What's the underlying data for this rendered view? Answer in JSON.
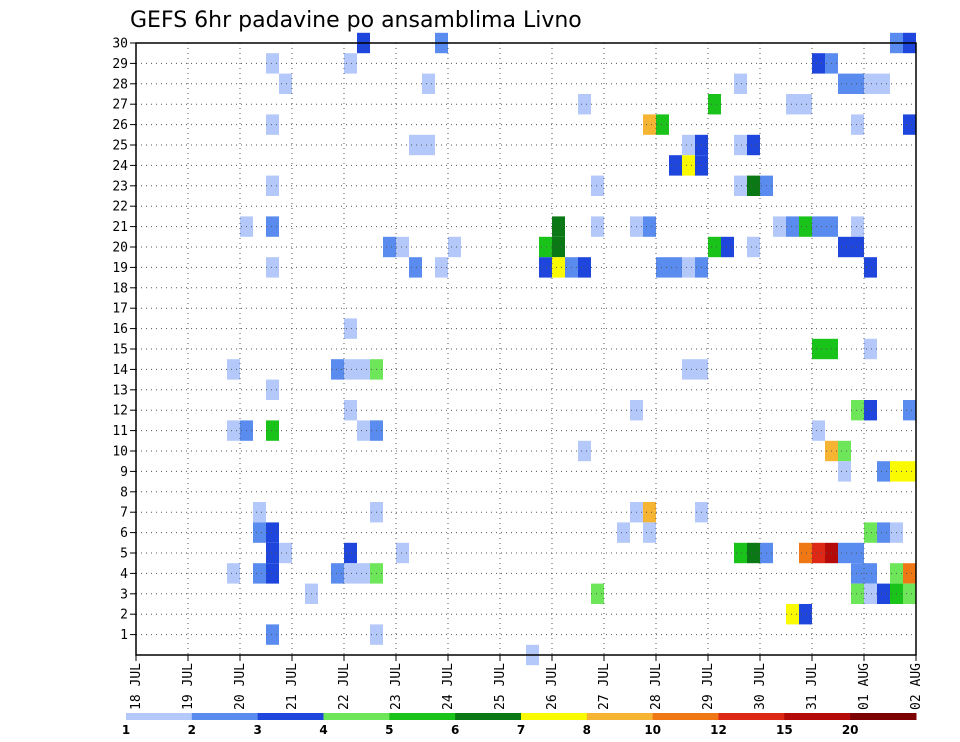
{
  "chart_data": {
    "type": "heatmap",
    "title": "GEFS 6hr padavine po ansamblima Livno",
    "xlabel": "",
    "ylabel": "",
    "x_tick_labels": [
      "18 JUL",
      "19 JUL",
      "20 JUL",
      "21 JUL",
      "22 JUL",
      "23 JUL",
      "24 JUL",
      "25 JUL",
      "26 JUL",
      "27 JUL",
      "28 JUL",
      "29 JUL",
      "30 JUL",
      "31 JUL",
      "01 AUG",
      "02 AUG"
    ],
    "x_unit": "6-hour step from 18 JUL 00Z (4 steps per day)",
    "xlim": [
      0,
      60
    ],
    "y_tick_labels": [
      1,
      2,
      3,
      4,
      5,
      6,
      7,
      8,
      9,
      10,
      11,
      12,
      13,
      14,
      15,
      16,
      17,
      18,
      19,
      20,
      21,
      22,
      23,
      24,
      25,
      26,
      27,
      28,
      29,
      30
    ],
    "ylim": [
      0,
      30
    ],
    "grid": true,
    "colorbar": {
      "labels": [
        "1",
        "2",
        "3",
        "4",
        "5",
        "6",
        "7",
        "8",
        "10",
        "12",
        "15",
        "20"
      ],
      "colors": [
        "#b4c8fa",
        "#5a8cf0",
        "#1e46dc",
        "#6ee65a",
        "#19c319",
        "#0a7814",
        "#fafa00",
        "#f5b432",
        "#f07814",
        "#dc2814",
        "#b40a0a",
        "#7d0000"
      ]
    },
    "cells_note": "each cell: [time_step, member, color_index (0-based into colorbar.colors)]",
    "cells": [
      [
        17,
        30,
        2
      ],
      [
        23,
        30,
        1
      ],
      [
        58,
        30,
        1
      ],
      [
        59,
        30,
        2
      ],
      [
        10,
        29,
        0
      ],
      [
        16,
        29,
        0
      ],
      [
        52,
        29,
        2
      ],
      [
        53,
        29,
        1
      ],
      [
        11,
        28,
        0
      ],
      [
        22,
        28,
        0
      ],
      [
        46,
        28,
        0
      ],
      [
        54,
        28,
        1
      ],
      [
        55,
        28,
        1
      ],
      [
        56,
        28,
        0
      ],
      [
        57,
        28,
        0
      ],
      [
        34,
        27,
        0
      ],
      [
        44,
        27,
        4
      ],
      [
        50,
        27,
        0
      ],
      [
        51,
        27,
        0
      ],
      [
        10,
        26,
        0
      ],
      [
        39,
        26,
        7
      ],
      [
        40,
        26,
        4
      ],
      [
        55,
        26,
        0
      ],
      [
        59,
        26,
        2
      ],
      [
        21,
        25,
        0
      ],
      [
        22,
        25,
        0
      ],
      [
        42,
        25,
        0
      ],
      [
        43,
        25,
        2
      ],
      [
        46,
        25,
        0
      ],
      [
        47,
        25,
        2
      ],
      [
        41,
        24,
        2
      ],
      [
        42,
        24,
        6
      ],
      [
        43,
        24,
        2
      ],
      [
        10,
        23,
        0
      ],
      [
        35,
        23,
        0
      ],
      [
        46,
        23,
        0
      ],
      [
        47,
        23,
        5
      ],
      [
        48,
        23,
        1
      ],
      [
        8,
        21,
        0
      ],
      [
        10,
        21,
        1
      ],
      [
        32,
        21,
        5
      ],
      [
        35,
        21,
        0
      ],
      [
        38,
        21,
        0
      ],
      [
        39,
        21,
        1
      ],
      [
        49,
        21,
        0
      ],
      [
        50,
        21,
        1
      ],
      [
        51,
        21,
        4
      ],
      [
        52,
        21,
        1
      ],
      [
        53,
        21,
        1
      ],
      [
        55,
        21,
        0
      ],
      [
        19,
        20,
        1
      ],
      [
        20,
        20,
        0
      ],
      [
        24,
        20,
        0
      ],
      [
        31,
        20,
        4
      ],
      [
        32,
        20,
        5
      ],
      [
        44,
        20,
        4
      ],
      [
        45,
        20,
        2
      ],
      [
        47,
        20,
        0
      ],
      [
        54,
        20,
        2
      ],
      [
        55,
        20,
        2
      ],
      [
        10,
        19,
        0
      ],
      [
        21,
        19,
        1
      ],
      [
        23,
        19,
        0
      ],
      [
        31,
        19,
        2
      ],
      [
        32,
        19,
        6
      ],
      [
        33,
        19,
        1
      ],
      [
        34,
        19,
        2
      ],
      [
        40,
        19,
        1
      ],
      [
        41,
        19,
        1
      ],
      [
        42,
        19,
        0
      ],
      [
        43,
        19,
        1
      ],
      [
        56,
        19,
        2
      ],
      [
        16,
        16,
        0
      ],
      [
        52,
        15,
        4
      ],
      [
        53,
        15,
        4
      ],
      [
        56,
        15,
        0
      ],
      [
        7,
        14,
        0
      ],
      [
        15,
        14,
        1
      ],
      [
        16,
        14,
        0
      ],
      [
        17,
        14,
        0
      ],
      [
        18,
        14,
        3
      ],
      [
        42,
        14,
        0
      ],
      [
        43,
        14,
        0
      ],
      [
        10,
        13,
        0
      ],
      [
        16,
        12,
        0
      ],
      [
        38,
        12,
        0
      ],
      [
        55,
        12,
        3
      ],
      [
        56,
        12,
        2
      ],
      [
        59,
        12,
        1
      ],
      [
        7,
        11,
        0
      ],
      [
        8,
        11,
        1
      ],
      [
        10,
        11,
        4
      ],
      [
        17,
        11,
        0
      ],
      [
        18,
        11,
        1
      ],
      [
        52,
        11,
        0
      ],
      [
        34,
        10,
        0
      ],
      [
        53,
        10,
        7
      ],
      [
        54,
        10,
        3
      ],
      [
        54,
        9,
        0
      ],
      [
        57,
        9,
        1
      ],
      [
        58,
        9,
        6
      ],
      [
        59,
        9,
        6
      ],
      [
        60,
        9,
        5
      ],
      [
        9,
        7,
        0
      ],
      [
        18,
        7,
        0
      ],
      [
        38,
        7,
        0
      ],
      [
        39,
        7,
        7
      ],
      [
        43,
        7,
        0
      ],
      [
        9,
        6,
        1
      ],
      [
        10,
        6,
        2
      ],
      [
        37,
        6,
        0
      ],
      [
        39,
        6,
        0
      ],
      [
        56,
        6,
        3
      ],
      [
        57,
        6,
        1
      ],
      [
        58,
        6,
        0
      ],
      [
        10,
        5,
        2
      ],
      [
        11,
        5,
        0
      ],
      [
        16,
        5,
        2
      ],
      [
        20,
        5,
        0
      ],
      [
        46,
        5,
        4
      ],
      [
        47,
        5,
        5
      ],
      [
        48,
        5,
        1
      ],
      [
        51,
        5,
        8
      ],
      [
        52,
        5,
        9
      ],
      [
        53,
        5,
        10
      ],
      [
        54,
        5,
        1
      ],
      [
        55,
        5,
        1
      ],
      [
        7,
        4,
        0
      ],
      [
        9,
        4,
        1
      ],
      [
        10,
        4,
        2
      ],
      [
        15,
        4,
        1
      ],
      [
        16,
        4,
        0
      ],
      [
        17,
        4,
        0
      ],
      [
        18,
        4,
        3
      ],
      [
        55,
        4,
        1
      ],
      [
        56,
        4,
        1
      ],
      [
        58,
        4,
        3
      ],
      [
        59,
        4,
        8
      ],
      [
        60,
        4,
        1
      ],
      [
        13,
        3,
        0
      ],
      [
        35,
        3,
        3
      ],
      [
        55,
        3,
        3
      ],
      [
        56,
        3,
        0
      ],
      [
        57,
        3,
        2
      ],
      [
        58,
        3,
        4
      ],
      [
        59,
        3,
        3
      ],
      [
        50,
        2,
        6
      ],
      [
        51,
        2,
        2
      ],
      [
        10,
        1,
        1
      ],
      [
        18,
        1,
        0
      ],
      [
        30,
        0,
        0
      ]
    ]
  }
}
